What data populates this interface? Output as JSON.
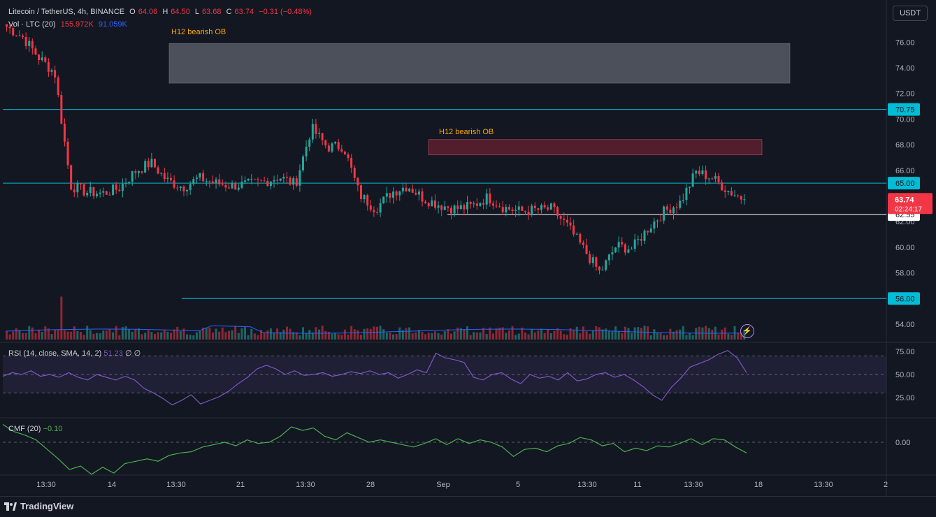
{
  "header": {
    "symbol": "Litecoin / TetherUS, 4h, BINANCE",
    "o_label": "O",
    "o_value": "64.06",
    "h_label": "H",
    "h_value": "64.50",
    "l_label": "L",
    "l_value": "63.68",
    "c_label": "C",
    "c_value": "63.74",
    "change": "−0.31 (−0.48%)",
    "vol_label": "Vol · LTC (20)",
    "vol_value": "155.972K",
    "vol_ma": "91.059K"
  },
  "currency_button": "USDT",
  "indicators": {
    "rsi_label": "RSI (14, close, SMA, 14, 2)",
    "rsi_value": "51.23",
    "rsi_extra1": "∅",
    "rsi_extra2": "∅",
    "cmf_label": "CMF (20)",
    "cmf_value": "−0.10"
  },
  "footer": {
    "brand": "TradingView"
  },
  "colors": {
    "background": "#131722",
    "up": "#26a69a",
    "down": "#f23645",
    "level_line": "#00bcd4",
    "rsi": "#7e57c2",
    "cmf": "#4caf50",
    "annotation": "#f7a600"
  },
  "chart_data": [
    {
      "type": "candlestick",
      "y_axis_ticks": [
        "76.00",
        "74.00",
        "72.00",
        "70.00",
        "68.00",
        "66.00",
        "64.00",
        "62.00",
        "60.00",
        "58.00",
        "56.00",
        "54.00"
      ],
      "ylim": [
        53,
        78
      ],
      "x_tick_labels": [
        "13:30",
        "14",
        "13:30",
        "21",
        "13:30",
        "28",
        "Sep",
        "5",
        "13:30",
        "11",
        "13:30",
        "18",
        "13:30",
        "2"
      ],
      "last_price": "63.74",
      "countdown": "02:24:17",
      "price_levels": [
        {
          "value": 70.75,
          "label": "70.75",
          "color": "#00bcd4"
        },
        {
          "value": 65.0,
          "label": "65.00",
          "color": "#00bcd4"
        },
        {
          "value": 62.55,
          "label": "62.55",
          "color": "#ffffff"
        },
        {
          "value": 56.0,
          "label": "56.00",
          "color": "#00bcd4"
        }
      ],
      "zones": [
        {
          "label": "H12 bearish OB",
          "top": 75.9,
          "bottom": 72.8,
          "fill": "rgba(180,185,195,0.35)"
        },
        {
          "label": "H12 bearish OB",
          "top": 68.4,
          "bottom": 67.2,
          "fill": "rgba(160,40,60,0.45)"
        }
      ],
      "price_path": [
        77.2,
        76.4,
        74.8,
        73.6,
        64.8,
        64.3,
        64.2,
        64.6,
        65.9,
        66.6,
        65.2,
        64.7,
        65.4,
        65.0,
        64.8,
        64.9,
        65.1,
        65.5,
        64.9,
        69.3,
        67.8,
        67.9,
        64.1,
        63.0,
        64.3,
        64.8,
        63.8,
        63.3,
        63.0,
        63.2,
        63.9,
        63.1,
        62.8,
        62.9,
        63.0,
        61.6,
        59.8,
        58.0,
        60.1,
        59.9,
        61.5,
        62.8,
        63.5,
        65.9,
        65.4,
        64.4,
        63.74
      ],
      "volume_label": "Vol · LTC (20)"
    },
    {
      "type": "line",
      "name": "RSI",
      "y_axis_ticks": [
        "75.00",
        "50.00",
        "25.00"
      ],
      "ylim": [
        10,
        80
      ],
      "band": [
        30,
        70
      ],
      "values": [
        48,
        52,
        50,
        54,
        48,
        50,
        47,
        52,
        47,
        44,
        50,
        47,
        44,
        48,
        44,
        35,
        30,
        24,
        17,
        22,
        28,
        18,
        22,
        26,
        32,
        40,
        47,
        56,
        60,
        56,
        50,
        54,
        49,
        50,
        52,
        48,
        50,
        53,
        51,
        54,
        50,
        52,
        46,
        50,
        55,
        52,
        73,
        68,
        66,
        63,
        47,
        44,
        50,
        52,
        45,
        40,
        50,
        46,
        48,
        44,
        52,
        43,
        45,
        50,
        52,
        47,
        50,
        44,
        37,
        28,
        22,
        36,
        46,
        58,
        62,
        66,
        72,
        76,
        68,
        52
      ]
    },
    {
      "type": "line",
      "name": "CMF",
      "y_axis_ticks": [
        "0.00"
      ],
      "ylim": [
        -0.35,
        0.2
      ],
      "values": [
        0.15,
        0.09,
        0.06,
        0.02,
        -0.06,
        -0.14,
        -0.23,
        -0.2,
        -0.27,
        -0.21,
        -0.26,
        -0.18,
        -0.16,
        -0.14,
        -0.16,
        -0.11,
        -0.09,
        -0.08,
        -0.04,
        -0.02,
        0.0,
        -0.03,
        0.02,
        -0.01,
        0.0,
        0.05,
        0.13,
        0.1,
        0.12,
        0.05,
        0.02,
        0.08,
        0.04,
        0.0,
        0.02,
        0.0,
        -0.02,
        -0.04,
        -0.01,
        0.03,
        -0.02,
        0.03,
        -0.01,
        0.02,
        0.0,
        -0.04,
        -0.12,
        -0.06,
        -0.05,
        -0.08,
        -0.03,
        -0.01,
        0.04,
        0.02,
        -0.03,
        -0.01,
        -0.08,
        -0.05,
        -0.07,
        -0.03,
        -0.04,
        -0.01,
        0.03,
        -0.02,
        0.03,
        0.02,
        -0.04,
        -0.09
      ]
    }
  ]
}
